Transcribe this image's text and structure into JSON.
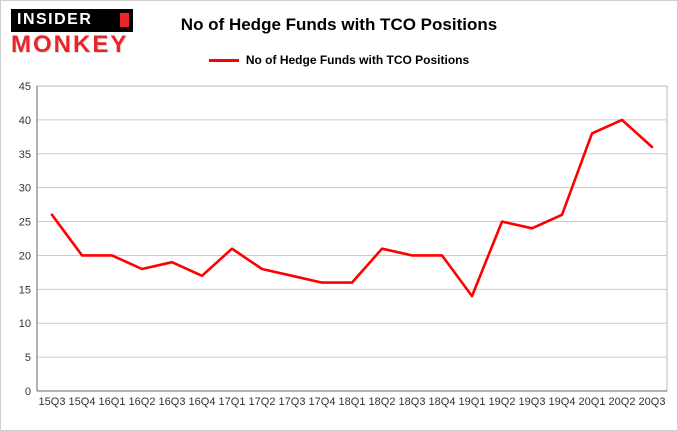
{
  "header": {
    "logo_line1": "INSIDER",
    "logo_line2": "MONKEY",
    "title": "No of Hedge Funds with TCO Positions"
  },
  "legend": {
    "label": "No of Hedge Funds with TCO Positions",
    "color": "#ff0000"
  },
  "chart_data": {
    "type": "line",
    "title": "No of Hedge Funds with TCO Positions",
    "categories": [
      "15Q3",
      "15Q4",
      "16Q1",
      "16Q2",
      "16Q3",
      "16Q4",
      "17Q1",
      "17Q2",
      "17Q3",
      "17Q4",
      "18Q1",
      "18Q2",
      "18Q3",
      "18Q4",
      "19Q1",
      "19Q2",
      "19Q3",
      "19Q4",
      "20Q1",
      "20Q2",
      "20Q3"
    ],
    "series": [
      {
        "name": "No of Hedge Funds with TCO Positions",
        "color": "#ff0000",
        "values": [
          26,
          20,
          20,
          18,
          19,
          17,
          21,
          18,
          17,
          16,
          16,
          21,
          20,
          20,
          14,
          25,
          24,
          26,
          38,
          40,
          36
        ]
      }
    ],
    "xlabel": "",
    "ylabel": "",
    "ylim": [
      0,
      45
    ],
    "ytick_interval": 5,
    "grid": true,
    "legend_position": "top"
  }
}
